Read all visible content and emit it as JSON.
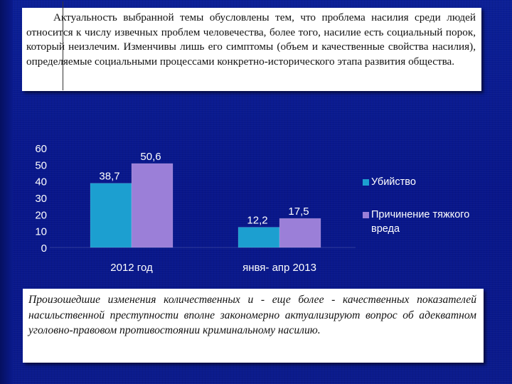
{
  "top_text": "Актуальность выбранной темы обусловлены тем, что проблема насилия среди людей относится к числу извечных проблем человечества, более того, насилие есть социальный порок, который неизлечим. Изменчивы лишь его симптомы (объем и качественные свойства насилия), определяемые социальными процессами конкретно-исторического этапа развития общества.",
  "bottom_text": "Произошедшие изменения количественных и - еще более - качественных показателей насильственной преступности вполне закономерно актуализируют вопрос об адекватном уголовно-правовом противостоянии криминальному насилию.",
  "chart_data": {
    "type": "bar",
    "categories": [
      "2012 год",
      "янвя- апр 2013"
    ],
    "series": [
      {
        "name": "Убийство",
        "values": [
          38.7,
          12.2
        ],
        "labels": [
          "38,7",
          "12,2"
        ],
        "color": "#1c9fd0"
      },
      {
        "name": "Причинение тяжкого вреда",
        "values": [
          50.6,
          17.5
        ],
        "labels": [
          "50,6",
          "17,5"
        ],
        "color": "#9b7fd8"
      }
    ],
    "ylim": [
      0,
      60
    ],
    "yticks": [
      "0",
      "10",
      "20",
      "30",
      "40",
      "50",
      "60"
    ],
    "legend": "right",
    "grid": false,
    "text_color": "#ffffff"
  }
}
